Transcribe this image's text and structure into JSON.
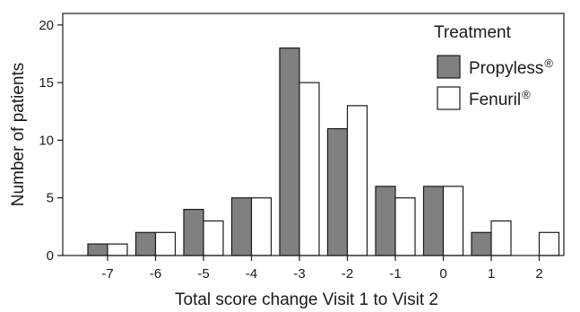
{
  "chart_data": {
    "type": "bar",
    "categories": [
      "-7",
      "-6",
      "-5",
      "-4",
      "-3",
      "-2",
      "-1",
      "0",
      "1",
      "2"
    ],
    "series": [
      {
        "name": "Propyless",
        "color": "#808080",
        "values": [
          1,
          2,
          4,
          5,
          18,
          11,
          6,
          6,
          2,
          0
        ]
      },
      {
        "name": "Fenuril",
        "color": "#ffffff",
        "values": [
          1,
          2,
          3,
          5,
          15,
          13,
          5,
          6,
          3,
          2
        ]
      }
    ],
    "xlabel": "Total score change Visit 1 to Visit 2",
    "ylabel": "Number of patients",
    "ylim": [
      0,
      21
    ],
    "yticks": [
      0,
      5,
      10,
      15,
      20
    ],
    "grid": false,
    "legend": {
      "title": "Treatment",
      "placement": "top-right",
      "suffix": "®"
    }
  }
}
